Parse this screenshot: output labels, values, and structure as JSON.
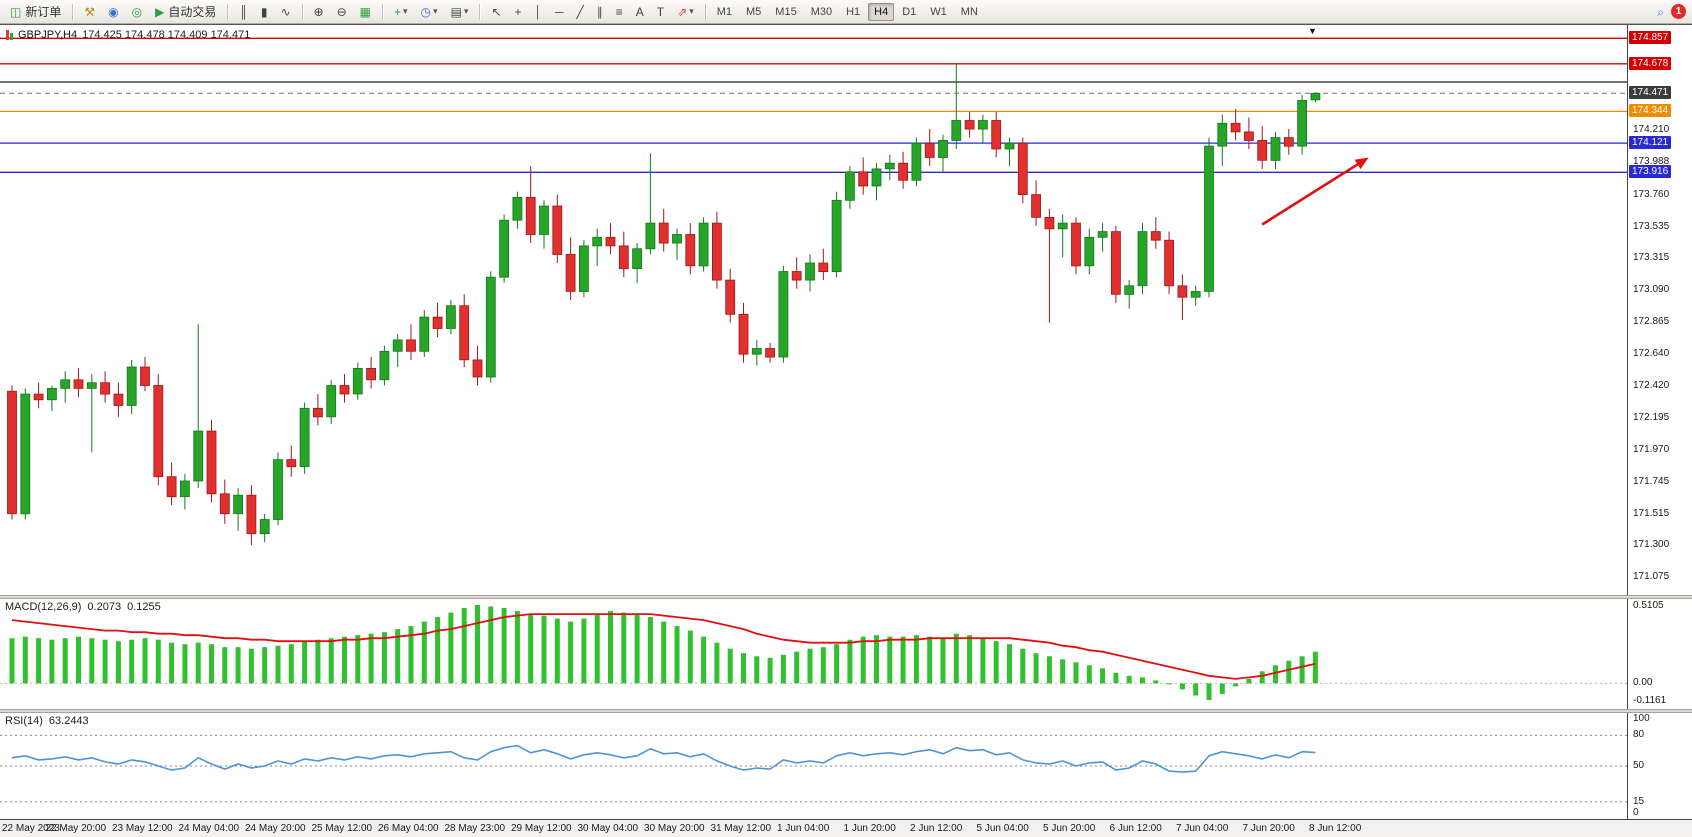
{
  "toolbar": {
    "new_order_label": "新订单",
    "auto_trading_label": "自动交易",
    "timeframes": [
      "M1",
      "M5",
      "M15",
      "M30",
      "H1",
      "H4",
      "D1",
      "W1",
      "MN"
    ],
    "active_timeframe": "H4",
    "notification_count": "1"
  },
  "icons": {
    "new_order": "◫",
    "metaeditor": "⚒",
    "community": "◉",
    "support": "◎",
    "auto_trading": "▶",
    "bar_chart": "║",
    "candle_chart": "▮",
    "line_chart": "∿",
    "zoom_in": "⊕",
    "zoom_out": "⊖",
    "tile_windows": "▦",
    "indicators": "+",
    "periods": "◷",
    "templates": "▤",
    "cursor": "↖",
    "crosshair": "+",
    "vline": "│",
    "hline": "─",
    "trendline": "╱",
    "channel": "∥",
    "fibonacci": "≡",
    "text_tool": "A",
    "label_tool": "T",
    "shapes": "⇗",
    "dropdown": "▾",
    "search": "⌕",
    "shift_marker": "▼"
  },
  "chart": {
    "symbol_title": "GBPJPY,H4",
    "ohlc_text": "174.425 174.478 174.409 174.471",
    "macd_label": "MACD(12,26,9)",
    "macd_value_main": "0.2073",
    "macd_value_signal": "0.1255",
    "rsi_label": "RSI(14)",
    "rsi_value": "63.2443",
    "price_ticks": [
      "174.210",
      "173.988",
      "173.760",
      "173.535",
      "173.315",
      "173.090",
      "172.865",
      "172.640",
      "172.420",
      "172.195",
      "171.970",
      "171.745",
      "171.515",
      "171.300",
      "171.075"
    ],
    "price_badges": [
      {
        "label": "174.857",
        "price": 174.857,
        "color": "#d40000"
      },
      {
        "label": "174.678",
        "price": 174.678,
        "color": "#d40000"
      },
      {
        "label": "174.471",
        "price": 174.471,
        "color": "#3c3c3c"
      },
      {
        "label": "174.344",
        "price": 174.344,
        "color": "#ef8b00"
      },
      {
        "label": "174.121",
        "price": 174.121,
        "color": "#2a2ad2"
      },
      {
        "label": "173.916",
        "price": 173.916,
        "color": "#2a2ad2"
      }
    ],
    "hlines": [
      {
        "price": 174.857,
        "color": "#d40000",
        "style": "solid"
      },
      {
        "price": 174.678,
        "color": "#d40000",
        "style": "solid"
      },
      {
        "price": 174.55,
        "color": "#222222",
        "style": "solid"
      },
      {
        "price": 174.471,
        "color": "#999999",
        "style": "dashed"
      },
      {
        "price": 174.344,
        "color": "#ef8b00",
        "style": "solid"
      },
      {
        "price": 174.121,
        "color": "#2a2ad2",
        "style": "solid"
      },
      {
        "price": 173.916,
        "color": "#2a2ad2",
        "style": "solid"
      }
    ],
    "macd_ticks": [
      {
        "label": "0.5105",
        "value": 0.5105
      },
      {
        "label": "0.00",
        "value": 0.0
      },
      {
        "label": "-0.1161",
        "value": -0.1161
      }
    ],
    "rsi_ticks": [
      {
        "label": "100",
        "value": 100
      },
      {
        "label": "80",
        "value": 80
      },
      {
        "label": "50",
        "value": 50
      },
      {
        "label": "15",
        "value": 15
      },
      {
        "label": "0",
        "value": 0
      }
    ],
    "rsi_levels": [
      80,
      50,
      15
    ],
    "time_labels": [
      "22 May 2023",
      "22 May 20:00",
      "23 May 12:00",
      "24 May 04:00",
      "24 May 20:00",
      "25 May 12:00",
      "26 May 04:00",
      "28 May 23:00",
      "29 May 12:00",
      "30 May 04:00",
      "30 May 20:00",
      "31 May 12:00",
      "1 Jun 04:00",
      "1 Jun 20:00",
      "2 Jun 12:00",
      "5 Jun 04:00",
      "5 Jun 20:00",
      "6 Jun 12:00",
      "7 Jun 04:00",
      "7 Jun 20:00",
      "8 Jun 12:00"
    ],
    "colors": {
      "bull": "#28a428",
      "bear": "#e03030",
      "bull_edge": "#0f7a1a",
      "bear_edge": "#a01818",
      "macd_hist": "#30c030",
      "macd_signal": "#e01010",
      "rsi_line": "#4f94d8",
      "arrow": "#e01010"
    }
  },
  "chart_data": [
    {
      "type": "candlestick",
      "title": "GBPJPY,H4",
      "timeframe": "H4",
      "ylim": [
        170.95,
        174.95
      ],
      "current_price": 174.471,
      "open_high_low_close": [
        [
          172.38,
          172.42,
          171.48,
          171.52
        ],
        [
          171.52,
          172.4,
          171.48,
          172.36
        ],
        [
          172.36,
          172.44,
          172.26,
          172.32
        ],
        [
          172.32,
          172.42,
          172.24,
          172.4
        ],
        [
          172.4,
          172.52,
          172.3,
          172.46
        ],
        [
          172.46,
          172.54,
          172.34,
          172.4
        ],
        [
          172.4,
          172.5,
          171.95,
          172.44
        ],
        [
          172.44,
          172.52,
          172.3,
          172.36
        ],
        [
          172.36,
          172.44,
          172.2,
          172.28
        ],
        [
          172.28,
          172.6,
          172.22,
          172.55
        ],
        [
          172.55,
          172.62,
          172.38,
          172.42
        ],
        [
          172.42,
          172.5,
          171.72,
          171.78
        ],
        [
          171.78,
          171.88,
          171.58,
          171.64
        ],
        [
          171.64,
          171.8,
          171.55,
          171.75
        ],
        [
          171.75,
          172.85,
          171.7,
          172.1
        ],
        [
          172.1,
          172.18,
          171.6,
          171.66
        ],
        [
          171.66,
          171.76,
          171.45,
          171.52
        ],
        [
          171.52,
          171.7,
          171.4,
          171.65
        ],
        [
          171.65,
          171.72,
          171.3,
          171.38
        ],
        [
          171.38,
          171.52,
          171.32,
          171.48
        ],
        [
          171.48,
          171.95,
          171.44,
          171.9
        ],
        [
          171.9,
          172.0,
          171.78,
          171.85
        ],
        [
          171.85,
          172.3,
          171.8,
          172.26
        ],
        [
          172.26,
          172.36,
          172.14,
          172.2
        ],
        [
          172.2,
          172.46,
          172.15,
          172.42
        ],
        [
          172.42,
          172.5,
          172.3,
          172.36
        ],
        [
          172.36,
          172.58,
          172.32,
          172.54
        ],
        [
          172.54,
          172.62,
          172.4,
          172.46
        ],
        [
          172.46,
          172.7,
          172.42,
          172.66
        ],
        [
          172.66,
          172.78,
          172.55,
          172.74
        ],
        [
          172.74,
          172.85,
          172.6,
          172.66
        ],
        [
          172.66,
          172.95,
          172.62,
          172.9
        ],
        [
          172.9,
          173.0,
          172.76,
          172.82
        ],
        [
          172.82,
          173.02,
          172.78,
          172.98
        ],
        [
          172.98,
          173.06,
          172.55,
          172.6
        ],
        [
          172.6,
          172.7,
          172.42,
          172.48
        ],
        [
          172.48,
          173.22,
          172.44,
          173.18
        ],
        [
          173.18,
          173.62,
          173.14,
          173.58
        ],
        [
          173.58,
          173.78,
          173.52,
          173.74
        ],
        [
          173.74,
          173.96,
          173.42,
          173.48
        ],
        [
          173.48,
          173.72,
          173.38,
          173.68
        ],
        [
          173.68,
          173.76,
          173.28,
          173.34
        ],
        [
          173.34,
          173.46,
          173.02,
          173.08
        ],
        [
          173.08,
          173.44,
          173.04,
          173.4
        ],
        [
          173.4,
          173.52,
          173.26,
          173.46
        ],
        [
          173.46,
          173.56,
          173.34,
          173.4
        ],
        [
          173.4,
          173.5,
          173.18,
          173.24
        ],
        [
          173.24,
          173.42,
          173.14,
          173.38
        ],
        [
          173.38,
          174.05,
          173.34,
          173.56
        ],
        [
          173.56,
          173.66,
          173.36,
          173.42
        ],
        [
          173.42,
          173.52,
          173.3,
          173.48
        ],
        [
          173.48,
          173.56,
          173.2,
          173.26
        ],
        [
          173.26,
          173.6,
          173.22,
          173.56
        ],
        [
          173.56,
          173.64,
          173.1,
          173.16
        ],
        [
          173.16,
          173.24,
          172.86,
          172.92
        ],
        [
          172.92,
          173.0,
          172.58,
          172.64
        ],
        [
          172.64,
          172.74,
          172.56,
          172.68
        ],
        [
          172.68,
          172.72,
          172.58,
          172.62
        ],
        [
          172.62,
          173.26,
          172.58,
          173.22
        ],
        [
          173.22,
          173.32,
          173.1,
          173.16
        ],
        [
          173.16,
          173.34,
          173.08,
          173.28
        ],
        [
          173.28,
          173.38,
          173.16,
          173.22
        ],
        [
          173.22,
          173.78,
          173.18,
          173.72
        ],
        [
          173.72,
          173.96,
          173.66,
          173.92
        ],
        [
          173.92,
          174.02,
          173.76,
          173.82
        ],
        [
          173.82,
          173.98,
          173.72,
          173.94
        ],
        [
          173.94,
          174.04,
          173.86,
          173.98
        ],
        [
          173.98,
          174.06,
          173.8,
          173.86
        ],
        [
          173.86,
          174.16,
          173.82,
          174.12
        ],
        [
          174.12,
          174.22,
          173.96,
          174.02
        ],
        [
          174.02,
          174.18,
          173.92,
          174.14
        ],
        [
          174.14,
          174.68,
          174.08,
          174.28
        ],
        [
          174.28,
          174.34,
          174.16,
          174.22
        ],
        [
          174.22,
          174.32,
          174.12,
          174.28
        ],
        [
          174.28,
          174.34,
          174.02,
          174.08
        ],
        [
          174.08,
          174.16,
          173.96,
          174.12
        ],
        [
          174.12,
          174.16,
          173.7,
          173.76
        ],
        [
          173.76,
          173.86,
          173.54,
          173.6
        ],
        [
          173.6,
          173.66,
          172.86,
          173.52
        ],
        [
          173.52,
          173.62,
          173.32,
          173.56
        ],
        [
          173.56,
          173.6,
          173.2,
          173.26
        ],
        [
          173.26,
          173.52,
          173.2,
          173.46
        ],
        [
          173.46,
          173.56,
          173.36,
          173.5
        ],
        [
          173.5,
          173.54,
          173.0,
          173.06
        ],
        [
          173.06,
          173.16,
          172.96,
          173.12
        ],
        [
          173.12,
          173.56,
          173.06,
          173.5
        ],
        [
          173.5,
          173.6,
          173.38,
          173.44
        ],
        [
          173.44,
          173.5,
          173.06,
          173.12
        ],
        [
          173.12,
          173.2,
          172.88,
          173.04
        ],
        [
          173.04,
          173.12,
          172.98,
          173.08
        ],
        [
          173.08,
          174.16,
          173.04,
          174.1
        ],
        [
          174.1,
          174.32,
          173.96,
          174.26
        ],
        [
          174.26,
          174.36,
          174.14,
          174.2
        ],
        [
          174.2,
          174.3,
          174.08,
          174.14
        ],
        [
          174.14,
          174.24,
          173.94,
          174.0
        ],
        [
          174.0,
          174.2,
          173.94,
          174.16
        ],
        [
          174.16,
          174.22,
          174.04,
          174.1
        ],
        [
          174.1,
          174.46,
          174.04,
          174.42
        ],
        [
          174.425,
          174.478,
          174.409,
          174.471
        ]
      ],
      "annotations": [
        {
          "type": "arrow",
          "from_index": 94,
          "from_price": 173.55,
          "to_index": 102,
          "to_price": 174.02,
          "color": "#e01010"
        }
      ]
    },
    {
      "type": "bar",
      "title": "MACD(12,26,9)",
      "ylim": [
        -0.17,
        0.56
      ],
      "current_main": 0.2073,
      "current_signal": 0.1255,
      "histogram": [
        0.3,
        0.31,
        0.3,
        0.29,
        0.3,
        0.31,
        0.3,
        0.29,
        0.28,
        0.29,
        0.3,
        0.29,
        0.27,
        0.26,
        0.27,
        0.26,
        0.24,
        0.24,
        0.23,
        0.24,
        0.25,
        0.26,
        0.28,
        0.29,
        0.3,
        0.31,
        0.32,
        0.33,
        0.34,
        0.36,
        0.38,
        0.41,
        0.44,
        0.47,
        0.5,
        0.52,
        0.51,
        0.5,
        0.48,
        0.46,
        0.45,
        0.43,
        0.41,
        0.43,
        0.46,
        0.48,
        0.47,
        0.46,
        0.44,
        0.41,
        0.38,
        0.35,
        0.31,
        0.27,
        0.23,
        0.2,
        0.18,
        0.17,
        0.19,
        0.21,
        0.23,
        0.24,
        0.26,
        0.29,
        0.31,
        0.32,
        0.31,
        0.31,
        0.32,
        0.31,
        0.3,
        0.33,
        0.32,
        0.3,
        0.28,
        0.26,
        0.23,
        0.2,
        0.18,
        0.16,
        0.14,
        0.12,
        0.1,
        0.07,
        0.05,
        0.04,
        0.02,
        0.0,
        -0.04,
        -0.08,
        -0.11,
        -0.07,
        -0.02,
        0.03,
        0.08,
        0.12,
        0.15,
        0.18,
        0.21
      ],
      "signal": [
        0.42,
        0.41,
        0.4,
        0.39,
        0.38,
        0.37,
        0.36,
        0.35,
        0.35,
        0.34,
        0.34,
        0.33,
        0.33,
        0.32,
        0.32,
        0.31,
        0.3,
        0.3,
        0.29,
        0.29,
        0.28,
        0.28,
        0.28,
        0.28,
        0.28,
        0.29,
        0.29,
        0.3,
        0.3,
        0.31,
        0.32,
        0.33,
        0.35,
        0.36,
        0.38,
        0.4,
        0.42,
        0.44,
        0.45,
        0.46,
        0.46,
        0.46,
        0.46,
        0.46,
        0.46,
        0.46,
        0.46,
        0.46,
        0.46,
        0.45,
        0.44,
        0.43,
        0.42,
        0.4,
        0.38,
        0.36,
        0.33,
        0.31,
        0.29,
        0.28,
        0.27,
        0.27,
        0.27,
        0.27,
        0.28,
        0.28,
        0.29,
        0.29,
        0.29,
        0.3,
        0.3,
        0.3,
        0.3,
        0.3,
        0.3,
        0.3,
        0.29,
        0.28,
        0.27,
        0.25,
        0.24,
        0.22,
        0.21,
        0.19,
        0.17,
        0.15,
        0.13,
        0.11,
        0.09,
        0.07,
        0.05,
        0.04,
        0.03,
        0.04,
        0.05,
        0.07,
        0.09,
        0.11,
        0.13
      ]
    },
    {
      "type": "line",
      "title": "RSI(14)",
      "ylim": [
        0,
        100
      ],
      "levels": [
        80,
        50,
        15
      ],
      "current": 63.2443,
      "values": [
        58,
        60,
        56,
        57,
        59,
        56,
        58,
        54,
        52,
        56,
        54,
        50,
        46,
        48,
        58,
        52,
        47,
        52,
        48,
        50,
        55,
        52,
        57,
        55,
        58,
        56,
        59,
        57,
        60,
        61,
        59,
        62,
        63,
        64,
        58,
        56,
        64,
        68,
        70,
        63,
        66,
        62,
        57,
        61,
        63,
        61,
        58,
        60,
        67,
        62,
        63,
        59,
        62,
        55,
        50,
        46,
        48,
        47,
        56,
        53,
        55,
        53,
        60,
        63,
        60,
        62,
        63,
        61,
        64,
        66,
        62,
        68,
        65,
        66,
        61,
        63,
        56,
        53,
        52,
        55,
        50,
        53,
        54,
        46,
        48,
        55,
        52,
        45,
        44,
        45,
        60,
        64,
        62,
        60,
        57,
        61,
        58,
        64,
        63.24
      ]
    }
  ]
}
